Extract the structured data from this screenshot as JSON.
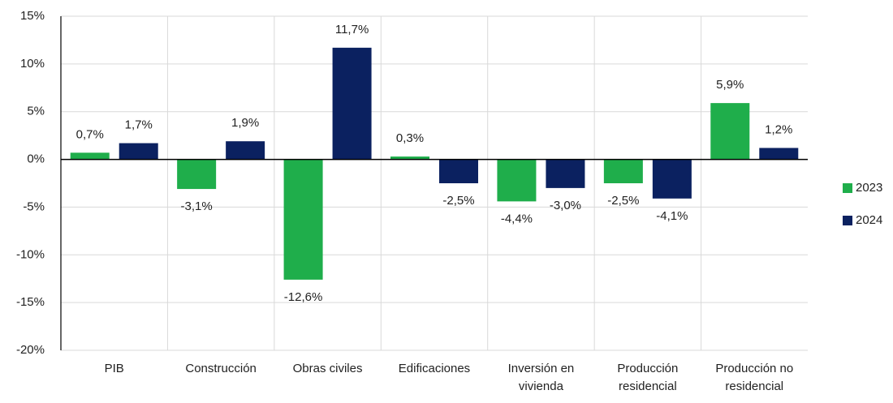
{
  "chart_data": {
    "type": "bar",
    "categories": [
      "PIB",
      "Construcción",
      "Obras civiles",
      "Edificaciones",
      "Inversión en vivienda",
      "Producción residencial",
      "Producción no residencial"
    ],
    "series": [
      {
        "name": "2023",
        "color": "#1fae4b",
        "values": [
          0.7,
          -3.1,
          -12.6,
          0.3,
          -4.4,
          -2.5,
          5.9
        ],
        "value_labels": [
          "0,7%",
          "-3,1%",
          "-12,6%",
          "0,3%",
          "-4,4%",
          "-2,5%",
          "5,9%"
        ]
      },
      {
        "name": "2024",
        "color": "#0b2160",
        "values": [
          1.7,
          1.9,
          11.7,
          -2.5,
          -3.0,
          -4.1,
          1.2
        ],
        "value_labels": [
          "1,7%",
          "1,9%",
          "11,7%",
          "-2,5%",
          "-3,0%",
          "-4,1%",
          "1,2%"
        ]
      }
    ],
    "ylim": [
      -20,
      15
    ],
    "yticks": [
      {
        "value": -20,
        "label": "-20%"
      },
      {
        "value": -15,
        "label": "-15%"
      },
      {
        "value": -10,
        "label": "-10%"
      },
      {
        "value": -5,
        "label": "-5%"
      },
      {
        "value": 0,
        "label": "0%"
      },
      {
        "value": 5,
        "label": "5%"
      },
      {
        "value": 10,
        "label": "10%"
      },
      {
        "value": 15,
        "label": "15%"
      }
    ],
    "grid": true,
    "legend": "right"
  }
}
